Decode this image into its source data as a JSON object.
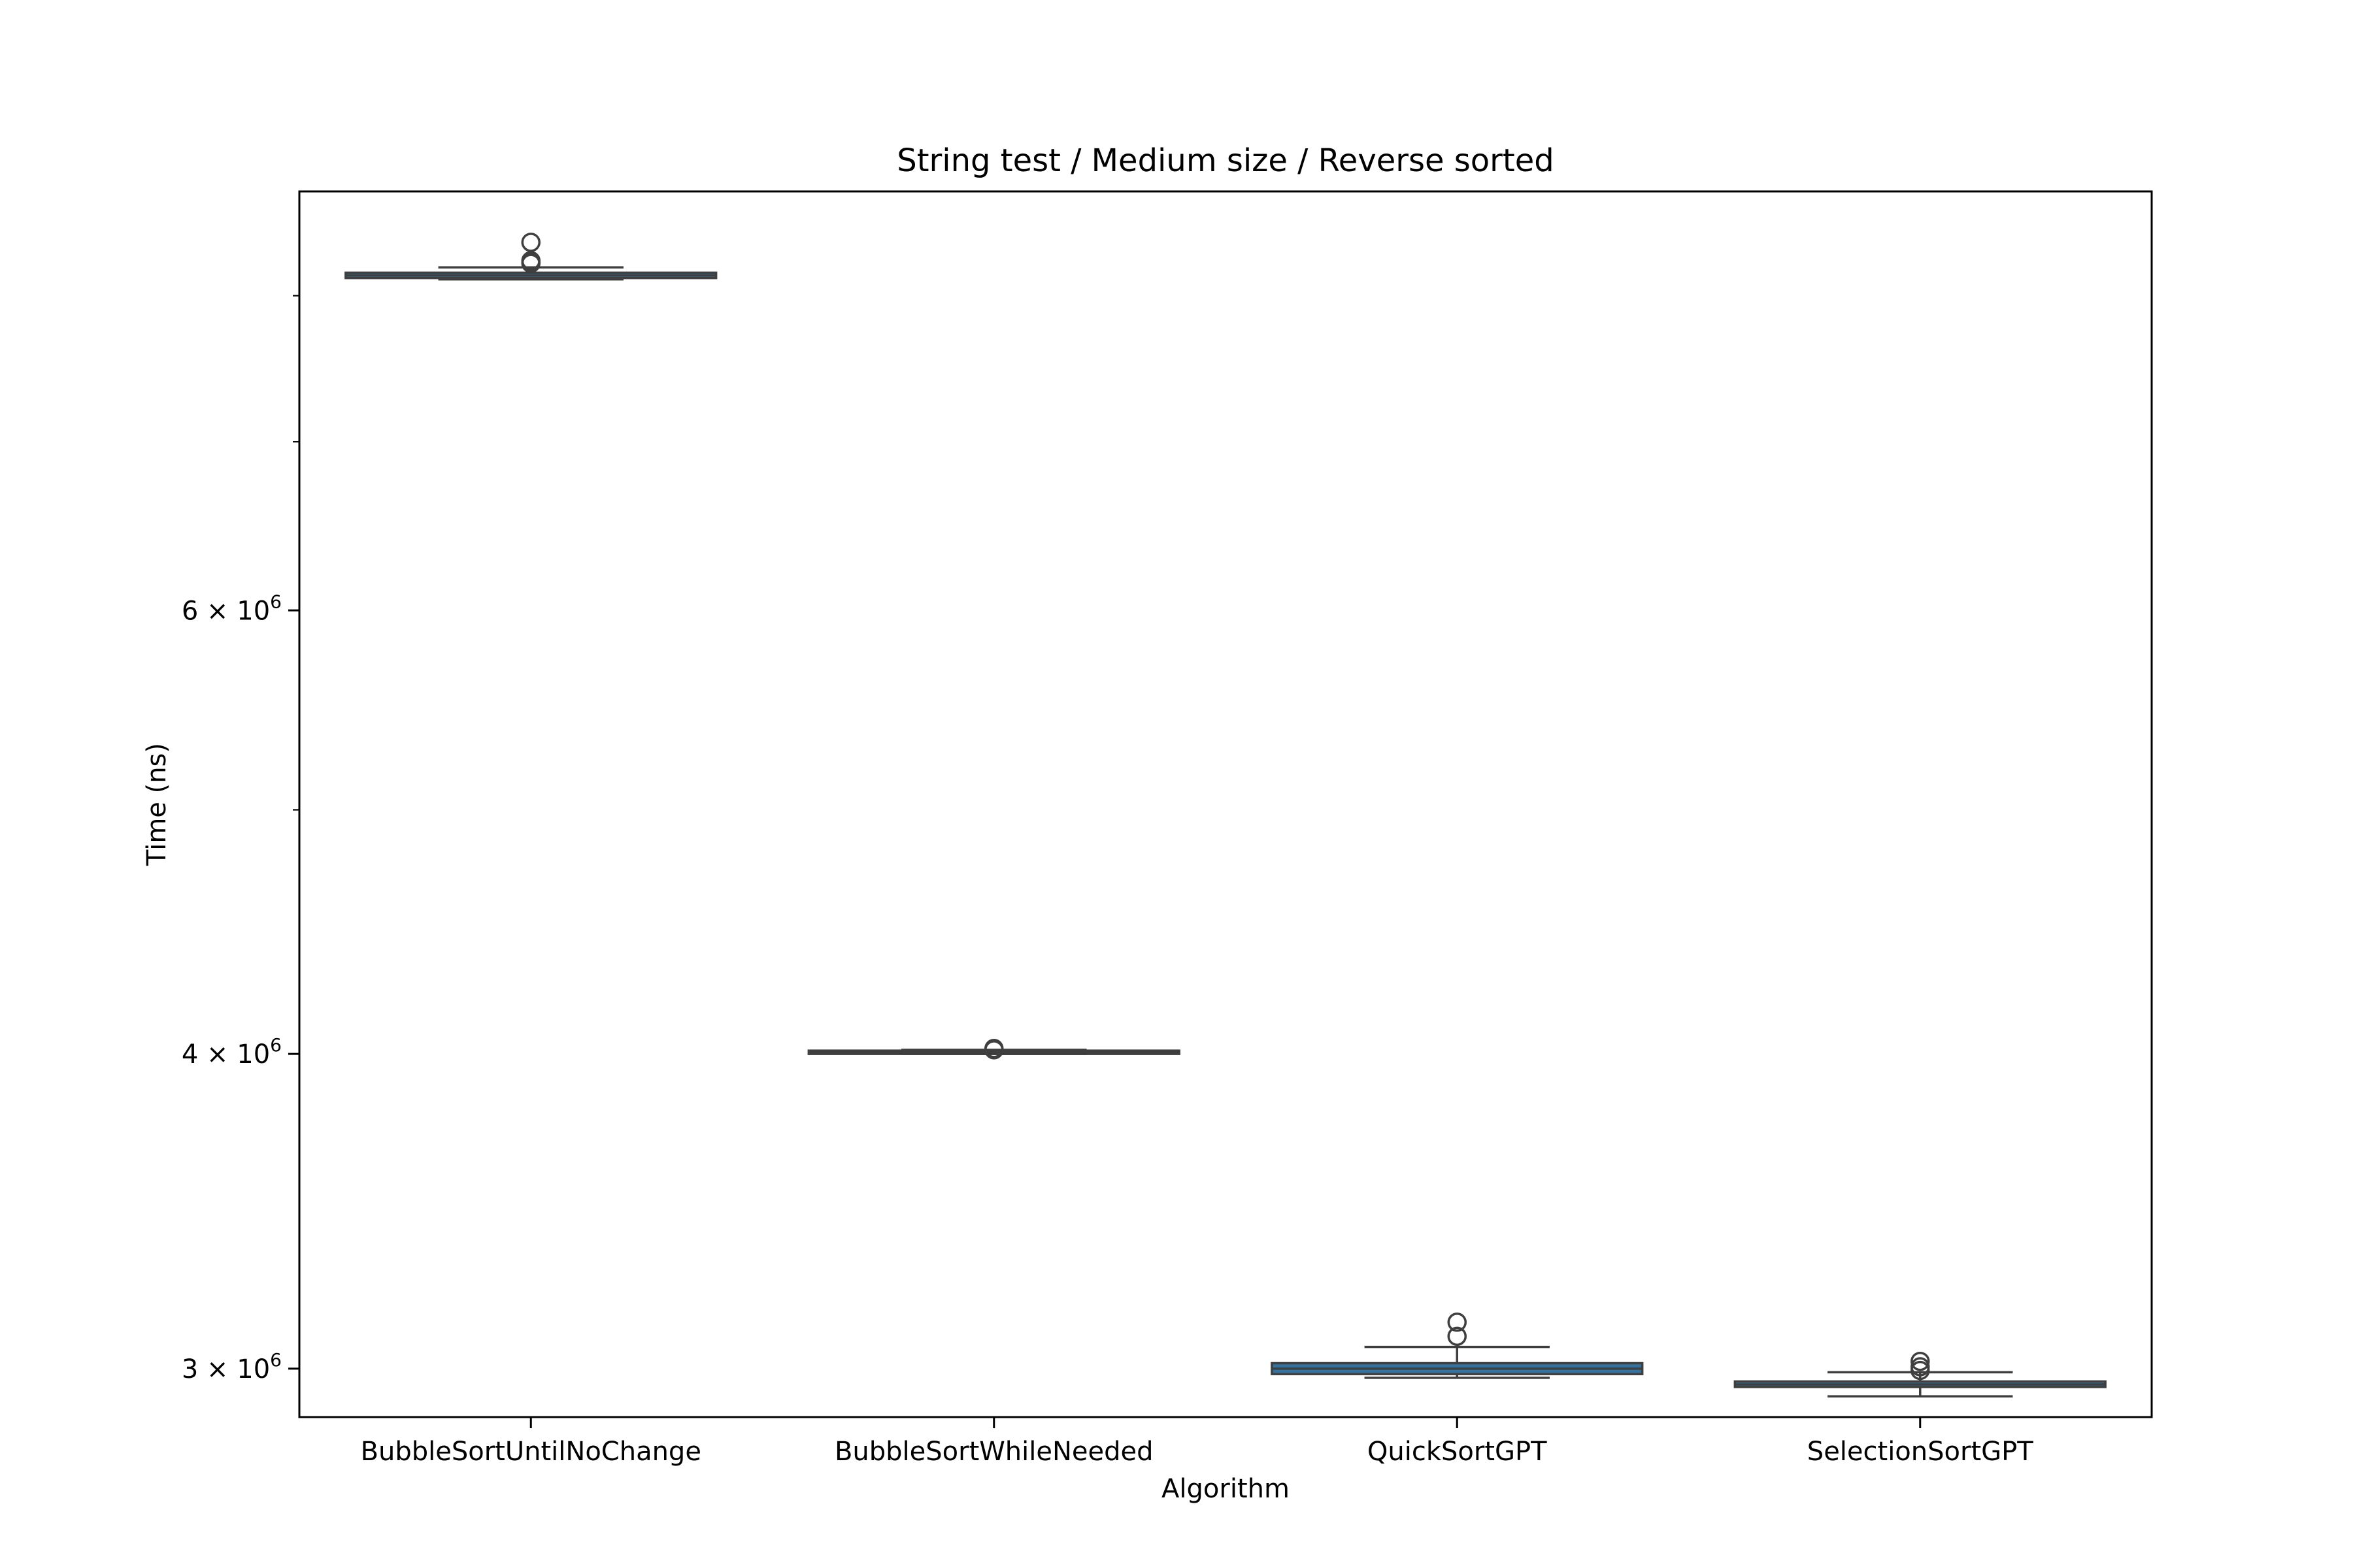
{
  "chart_data": {
    "type": "box",
    "title": "String test / Medium size / Reverse sorted",
    "xlabel": "Algorithm",
    "ylabel": "Time (ns)",
    "yscale": "log",
    "ylim": [
      2870000,
      8800000
    ],
    "y_major_ticks": [
      {
        "value": 3000000,
        "mantissa": "3",
        "base": "10",
        "exponent": "6"
      },
      {
        "value": 4000000,
        "mantissa": "4",
        "base": "10",
        "exponent": "6"
      },
      {
        "value": 6000000,
        "mantissa": "6",
        "base": "10",
        "exponent": "6"
      }
    ],
    "y_minor_ticks": [
      5000000,
      7000000,
      8000000
    ],
    "box_color": "#3274a1",
    "line_color": "#3f3f3f",
    "categories": [
      "BubbleSortUntilNoChange",
      "BubbleSortWhileNeeded",
      "QuickSortGPT",
      "SelectionSortGPT"
    ],
    "boxes": [
      {
        "whislo": 8120000,
        "q1": 8130000,
        "med": 8150000,
        "q3": 8170000,
        "whishi": 8210000,
        "fliers": [
          8400000,
          8250000,
          8240000,
          8260000
        ]
      },
      {
        "whislo": 4000000,
        "q1": 4000000,
        "med": 4005000,
        "q3": 4012000,
        "whishi": 4015000,
        "fliers": [
          4020000,
          4015000
        ]
      },
      {
        "whislo": 2975000,
        "q1": 2985000,
        "med": 3000000,
        "q3": 3015000,
        "whishi": 3060000,
        "fliers": [
          3130000,
          3090000
        ]
      },
      {
        "whislo": 2925000,
        "q1": 2950000,
        "med": 2957000,
        "q3": 2965000,
        "whishi": 2990000,
        "fliers": [
          3020000,
          3005000,
          2995000
        ]
      }
    ]
  }
}
